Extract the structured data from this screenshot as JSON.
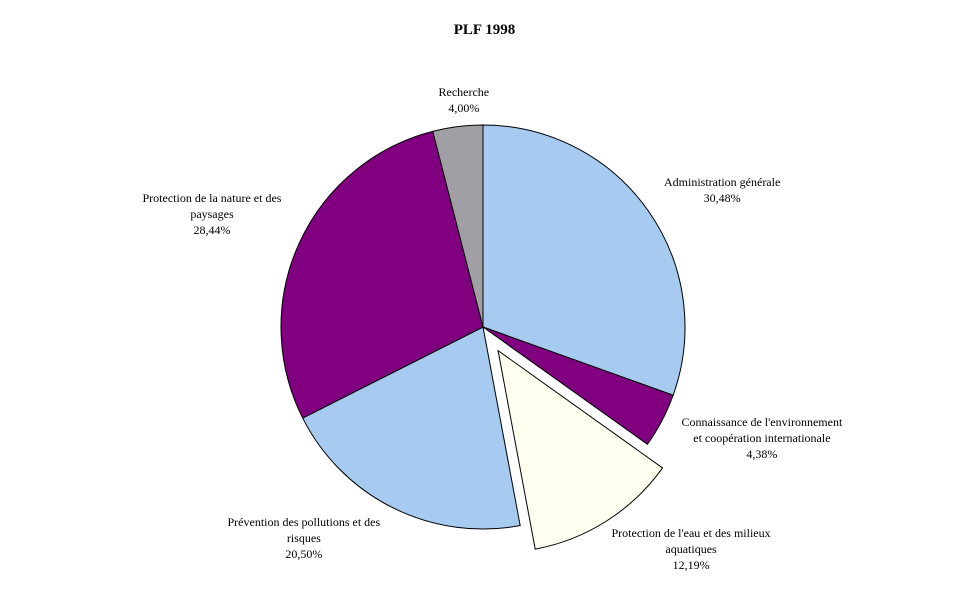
{
  "chart_data": {
    "type": "pie",
    "title": "PLF 1998",
    "start": "top",
    "direction": "clockwise",
    "slices": [
      {
        "label": [
          "Administration générale"
        ],
        "value": 30.48,
        "value_label": "30,48%",
        "color": "#A6CAF0",
        "exploded": false
      },
      {
        "label": [
          "Connaissance de l'environnement",
          "et coopération internationale"
        ],
        "value": 4.38,
        "value_label": "4,38%",
        "color": "#800080",
        "exploded": false
      },
      {
        "label": [
          "Protection de l'eau et des milieux",
          "aquatiques"
        ],
        "value": 12.19,
        "value_label": "12,19%",
        "color": "#FFFFF0",
        "exploded": true
      },
      {
        "label": [
          "Prévention des pollutions et des",
          "risques"
        ],
        "value": 20.5,
        "value_label": "20,50%",
        "color": "#A6CAF0",
        "exploded": false
      },
      {
        "label": [
          "Protection de la nature et des",
          "paysages"
        ],
        "value": 28.44,
        "value_label": "28,44%",
        "color": "#800080",
        "exploded": false
      },
      {
        "label": [
          "Recherche"
        ],
        "value": 4.0,
        "value_label": "4,00%",
        "color": "#A0A0A4",
        "exploded": false
      }
    ]
  }
}
